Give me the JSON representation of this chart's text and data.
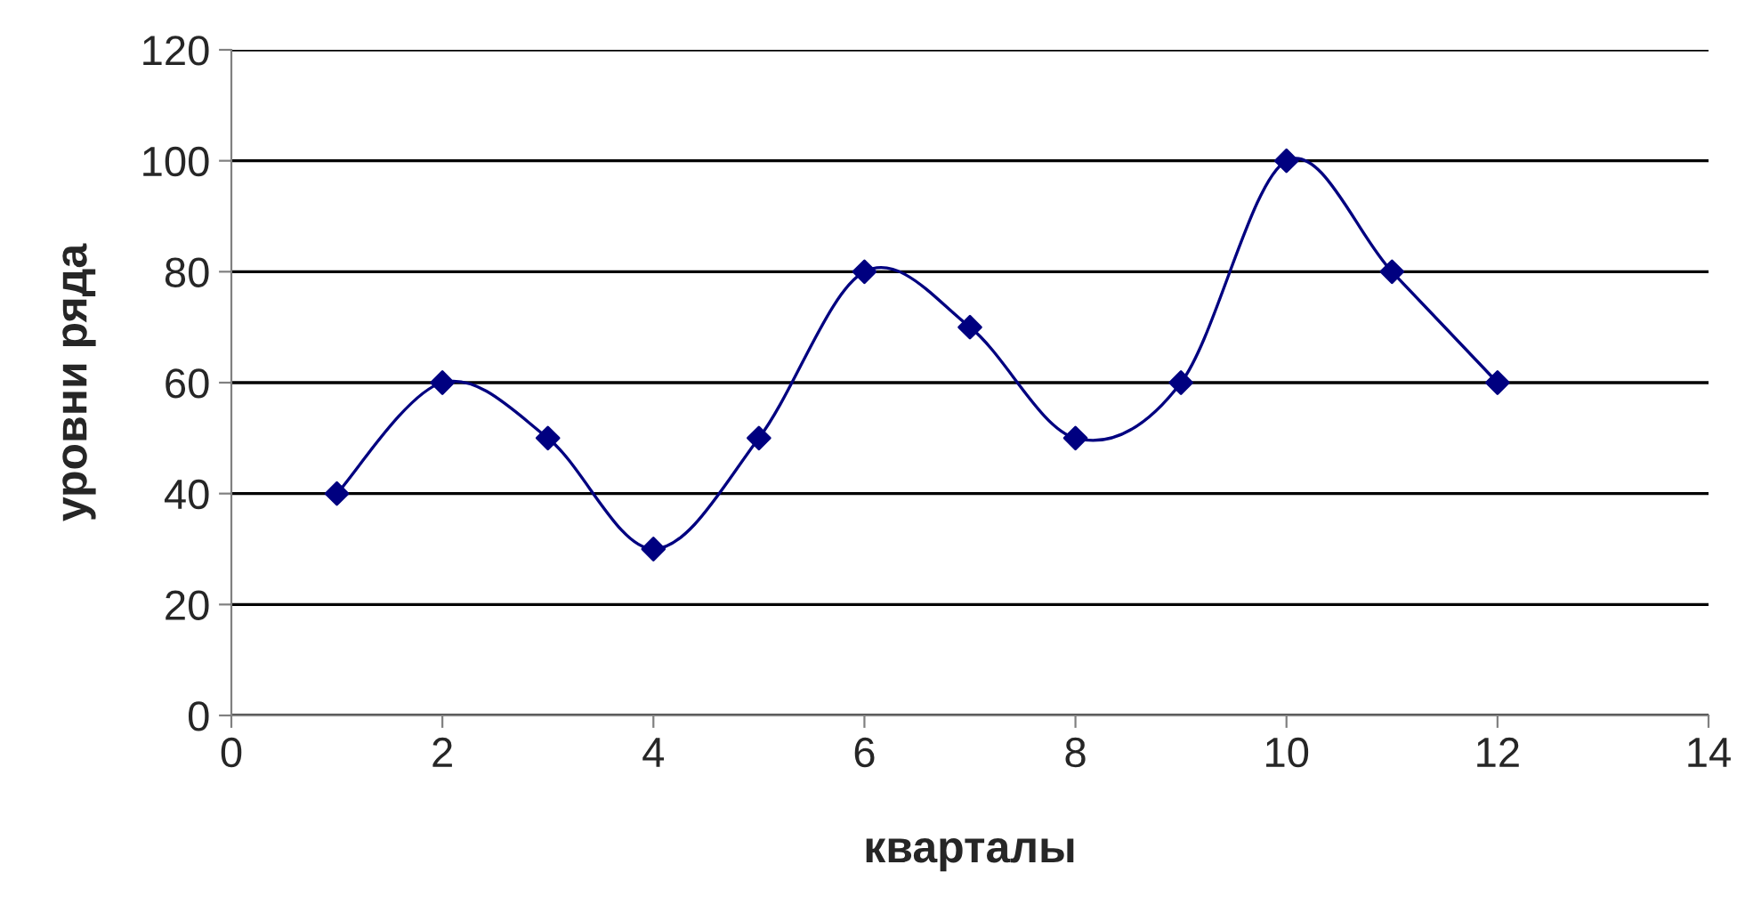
{
  "chart_data": {
    "type": "line",
    "xlabel": "кварталы",
    "ylabel": "уровни ряда",
    "x": [
      1,
      2,
      3,
      4,
      5,
      6,
      7,
      8,
      9,
      10,
      11,
      12
    ],
    "series": [
      {
        "color": "#000080",
        "values": [
          40,
          60,
          50,
          30,
          50,
          80,
          70,
          50,
          60,
          100,
          80,
          60
        ]
      }
    ],
    "xlim": [
      0,
      14
    ],
    "xticks": [
      0,
      2,
      4,
      6,
      8,
      10,
      12,
      14
    ],
    "ylim": [
      0,
      120
    ],
    "yticks": [
      0,
      20,
      40,
      60,
      80,
      100,
      120
    ],
    "grid": "y",
    "marker": "diamond",
    "line_style": "solid",
    "legend": false
  }
}
